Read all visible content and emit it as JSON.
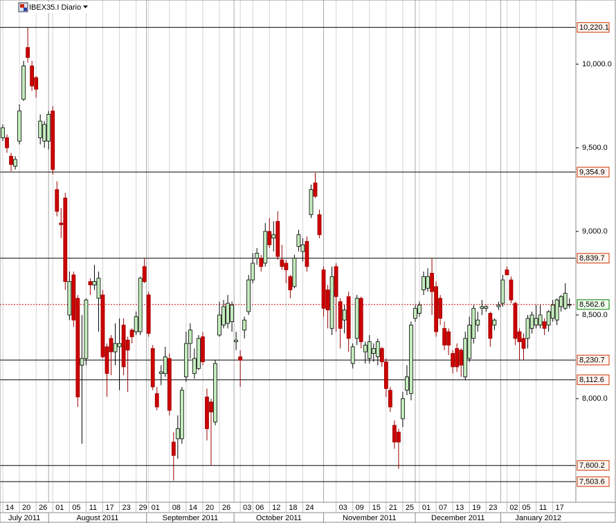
{
  "chart_data": {
    "type": "candlestick",
    "title": "IBEX35.I Diario",
    "categories": [
      null,
      "14",
      null,
      null,
      null,
      "20",
      null,
      null,
      null,
      "26",
      null,
      null,
      null,
      "01",
      null,
      null,
      null,
      "05",
      null,
      null,
      null,
      "11",
      null,
      null,
      null,
      "17",
      null,
      null,
      null,
      "23",
      null,
      null,
      null,
      "29",
      null,
      null,
      "01",
      null,
      null,
      null,
      null,
      "08",
      null,
      null,
      null,
      "14",
      null,
      null,
      null,
      "20",
      null,
      null,
      null,
      "26",
      null,
      null,
      null,
      null,
      "03",
      null,
      null,
      "06",
      null,
      null,
      null,
      "12",
      null,
      null,
      null,
      "18",
      null,
      null,
      null,
      "24",
      null,
      null,
      null,
      null,
      null,
      null,
      null,
      "03",
      null,
      null,
      null,
      "09",
      null,
      null,
      null,
      "15",
      null,
      null,
      null,
      "21",
      null,
      null,
      null,
      "25",
      null,
      null,
      null,
      "01",
      null,
      null,
      null,
      "07",
      null,
      null,
      null,
      "13",
      null,
      null,
      null,
      "19",
      null,
      null,
      null,
      "23",
      null,
      null,
      null,
      null,
      "02",
      null,
      null,
      "05",
      null,
      null,
      null,
      "11",
      null,
      null,
      null,
      "17",
      null,
      null,
      null
    ],
    "months": [
      "July 2011",
      "August 2011",
      "September 2011",
      "October 2011",
      "November 2011",
      "December 2011",
      "January 2012"
    ],
    "open": [
      9560,
      9560,
      9450,
      9390,
      9540,
      9790,
      10100,
      9990,
      9920,
      9560,
      9540,
      9540,
      9720,
      9250,
      9050,
      9200,
      8500,
      8740,
      8600,
      8200,
      8240,
      8700,
      8680,
      8600,
      8620,
      8310,
      8360,
      8280,
      8310,
      8440,
      8350,
      8410,
      8400,
      8400,
      8790,
      8620,
      8300,
      8030,
      8150,
      8150,
      8240,
      7740,
      7760,
      7760,
      8130,
      8330,
      8150,
      8180,
      8370,
      8010,
      7980,
      7860,
      8380,
      8440,
      8450,
      8460,
      8340,
      8250,
      8410,
      8520,
      8710,
      8840,
      8840,
      8810,
      9000,
      8960,
      9060,
      8830,
      8810,
      8730,
      8670,
      8910,
      8880,
      8940,
      9100,
      9290,
      9100,
      8770,
      8650,
      8420,
      8790,
      8580,
      8470,
      8610,
      8210,
      8360,
      8600,
      8280,
      8240,
      8270,
      8250,
      8300,
      8220,
      8050,
      7840,
      7800,
      7880,
      8050,
      8030,
      8480,
      8510,
      8650,
      8660,
      8750,
      8670,
      8600,
      8420,
      8400,
      8270,
      8300,
      8290,
      8130,
      8240,
      8360,
      8440,
      8540,
      8540,
      8510,
      8440,
      8550,
      8570,
      8770,
      8710,
      8570,
      8400,
      8360,
      8360,
      8420,
      8440,
      8440,
      8460,
      8440,
      8480,
      8470,
      8550,
      8540,
      8560
    ],
    "high": [
      9640,
      9580,
      9470,
      9450,
      9760,
      10020,
      10220,
      10020,
      9930,
      9700,
      9660,
      9720,
      9750,
      9300,
      9140,
      9230,
      8760,
      8760,
      8620,
      8500,
      8600,
      8720,
      8800,
      8760,
      8650,
      8330,
      8380,
      8450,
      8480,
      8480,
      8370,
      8420,
      8520,
      8730,
      8840,
      8640,
      8320,
      8070,
      8200,
      8310,
      8270,
      7800,
      7900,
      8070,
      8400,
      8450,
      8300,
      8380,
      8400,
      8060,
      8000,
      8230,
      8580,
      8590,
      8620,
      8580,
      8400,
      8290,
      8490,
      8740,
      8870,
      8900,
      8860,
      9050,
      9080,
      9060,
      9120,
      8920,
      8830,
      8740,
      8860,
      9010,
      8960,
      8970,
      9280,
      9350,
      9130,
      8790,
      8680,
      8790,
      8810,
      8600,
      8560,
      8640,
      8330,
      8620,
      8610,
      8340,
      8380,
      8330,
      8360,
      8310,
      8240,
      8070,
      7870,
      7820,
      8040,
      8200,
      8460,
      8560,
      8580,
      8760,
      8780,
      8840,
      8700,
      8620,
      8460,
      8420,
      8290,
      8330,
      8300,
      8400,
      8490,
      8560,
      8520,
      8590,
      8560,
      8520,
      8480,
      8580,
      8740,
      8790,
      8730,
      8580,
      8420,
      8390,
      8500,
      8520,
      8560,
      8560,
      8480,
      8530,
      8590,
      8600,
      8620,
      8690,
      8600
    ],
    "low": [
      9540,
      9470,
      9360,
      9370,
      9520,
      9780,
      10010,
      9840,
      9800,
      9520,
      9500,
      9490,
      9340,
      9090,
      8960,
      8650,
      8470,
      8430,
      7950,
      7730,
      8200,
      8620,
      8650,
      8400,
      8240,
      8010,
      8140,
      8200,
      8050,
      8140,
      8040,
      8330,
      8380,
      8380,
      8690,
      8370,
      8050,
      7930,
      8080,
      8130,
      7900,
      7510,
      7640,
      7730,
      8100,
      8240,
      8120,
      8170,
      8200,
      7750,
      7600,
      7840,
      8370,
      8420,
      8420,
      8400,
      8290,
      8070,
      8360,
      8500,
      8690,
      8800,
      8760,
      8790,
      8900,
      8880,
      8830,
      8770,
      8690,
      8600,
      8660,
      8880,
      8820,
      8760,
      9080,
      9200,
      8960,
      8490,
      8420,
      8380,
      8400,
      8300,
      8390,
      8280,
      8180,
      8320,
      8300,
      8210,
      8210,
      8220,
      8200,
      8190,
      8010,
      7920,
      7700,
      7580,
      7830,
      8020,
      7990,
      8460,
      8490,
      8620,
      8640,
      8500,
      8370,
      8440,
      8290,
      8260,
      8150,
      8160,
      8130,
      8110,
      8220,
      8330,
      8400,
      8500,
      8520,
      8310,
      8410,
      8530,
      8550,
      8740,
      8570,
      8320,
      8230,
      8230,
      8300,
      8390,
      8420,
      8420,
      8380,
      8400,
      8460,
      8440,
      8520,
      8530,
      8540
    ],
    "close": [
      9620,
      9500,
      9400,
      9430,
      9720,
      9990,
      10040,
      9870,
      9850,
      9660,
      9640,
      9700,
      9370,
      9120,
      9040,
      8700,
      8700,
      8470,
      8010,
      8240,
      8590,
      8680,
      8700,
      8720,
      8250,
      8150,
      8280,
      8330,
      8330,
      8190,
      8290,
      8370,
      8490,
      8720,
      8700,
      8390,
      8070,
      7950,
      8160,
      8250,
      7930,
      7660,
      7820,
      8050,
      8330,
      8410,
      8240,
      8360,
      8220,
      7820,
      7920,
      8210,
      8500,
      8550,
      8570,
      8560,
      8350,
      8230,
      8470,
      8710,
      8810,
      8870,
      8790,
      9000,
      8920,
      8980,
      8850,
      8790,
      8770,
      8650,
      8840,
      8980,
      8920,
      8790,
      9250,
      9210,
      8980,
      8540,
      8530,
      8730,
      8610,
      8420,
      8530,
      8360,
      8310,
      8600,
      8340,
      8320,
      8340,
      8300,
      8340,
      8220,
      8060,
      7950,
      7740,
      7740,
      8000,
      8130,
      8440,
      8540,
      8560,
      8730,
      8730,
      8640,
      8400,
      8480,
      8320,
      8320,
      8190,
      8190,
      8200,
      8360,
      8440,
      8540,
      8470,
      8550,
      8550,
      8360,
      8470,
      8560,
      8710,
      8740,
      8590,
      8360,
      8340,
      8300,
      8480,
      8500,
      8480,
      8500,
      8420,
      8520,
      8560,
      8590,
      8610,
      8630,
      8562.6
    ],
    "up_color": "#c4ecbd",
    "down_color": "#cc0000",
    "ylim": [
      7380,
      10384
    ],
    "yticks": [
      {
        "value": 8000,
        "label": "8,000.0"
      },
      {
        "value": 8500,
        "label": "8,500.0"
      },
      {
        "value": 9000,
        "label": "9,000.0"
      },
      {
        "value": 9500,
        "label": "9,500.0"
      },
      {
        "value": 10000,
        "label": "10,000.0"
      }
    ],
    "levels": [
      {
        "value": 10220.1,
        "label": "10,220.1"
      },
      {
        "value": 9354.9,
        "label": "9,354.9"
      },
      {
        "value": 8839.7,
        "label": "8,839.7"
      },
      {
        "value": 8230.7,
        "label": "8,230.7"
      },
      {
        "value": 8112.6,
        "label": "8,112.6"
      },
      {
        "value": 7600.2,
        "label": "7,600.2"
      },
      {
        "value": 7503.6,
        "label": "7,503.6"
      }
    ],
    "level_color": "#cc3300",
    "last_price": {
      "value": 8562.6,
      "label": "8,562.6"
    },
    "last_color": "#008000",
    "grid": true
  }
}
